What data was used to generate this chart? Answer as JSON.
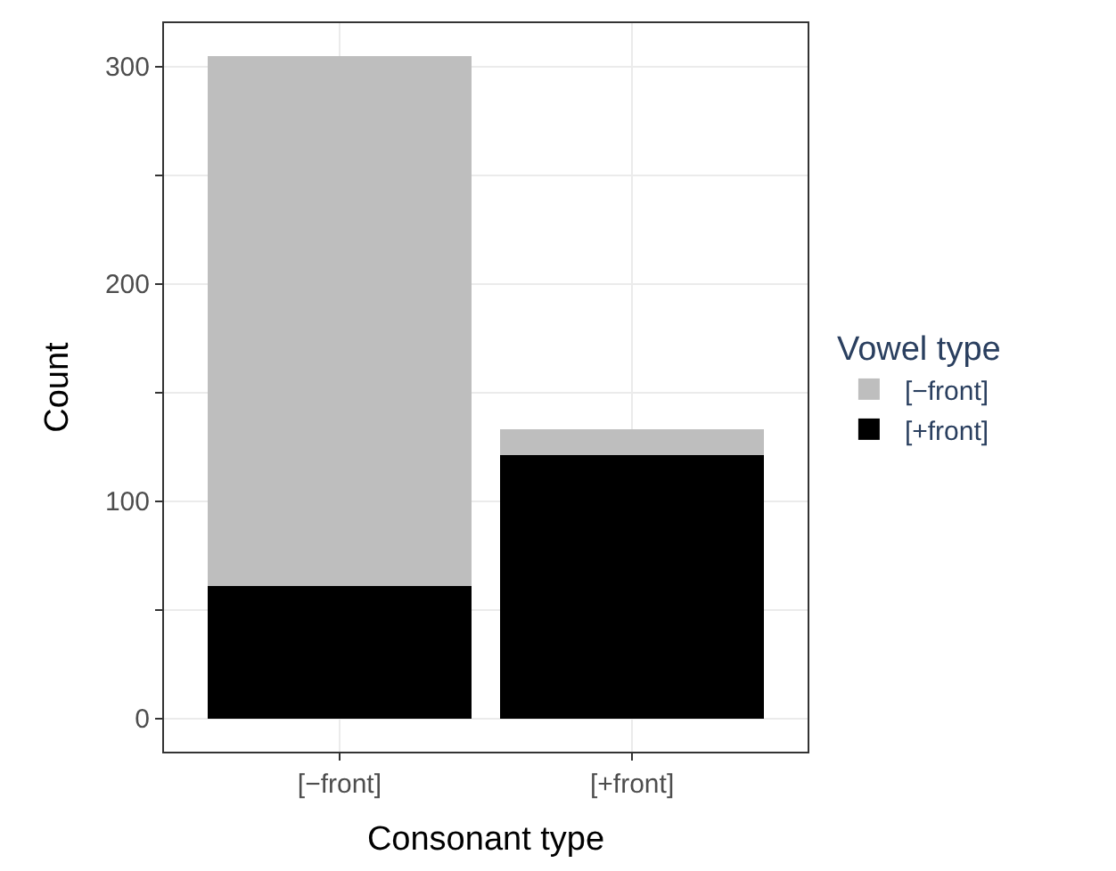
{
  "chart_data": {
    "type": "bar",
    "stacked": true,
    "xlabel": "Consonant type",
    "ylabel": "Count",
    "legend_title": "Vowel type",
    "categories": [
      "[−front]",
      "[+front]"
    ],
    "series": [
      {
        "name": "[+front]",
        "color": "#000000",
        "values": [
          61,
          121
        ]
      },
      {
        "name": "[−front]",
        "color": "#bebebe",
        "values": [
          244,
          12
        ]
      }
    ],
    "ylim": [
      -15.3,
      320
    ],
    "yticks": [
      0,
      {
        "value": 50,
        "label": null
      },
      100,
      {
        "value": 150,
        "label": null
      },
      200,
      {
        "value": 250,
        "label": null
      },
      300
    ],
    "grid": true,
    "legend": "right"
  }
}
